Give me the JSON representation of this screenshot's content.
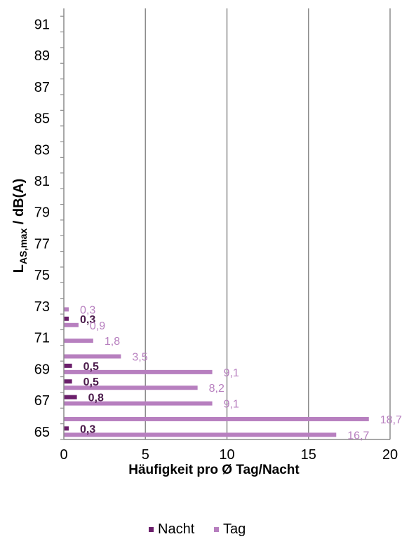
{
  "chart_data": {
    "type": "bar",
    "orientation": "horizontal",
    "xlabel": "Häufigkeit pro Ø Tag/Nacht",
    "ylabel_main": "L",
    "ylabel_sub": "AS,max",
    "ylabel_rest": " / dB(A)",
    "xlim": [
      0,
      20
    ],
    "xticks": [
      0,
      5,
      10,
      15,
      20
    ],
    "ylim": [
      64.5,
      92
    ],
    "yticks": [
      65,
      67,
      69,
      71,
      73,
      75,
      77,
      79,
      81,
      83,
      85,
      87,
      89,
      91
    ],
    "grid_x": true,
    "legend_position": "bottom",
    "colors": {
      "Nacht": "#6b1f6b",
      "Tag": "#b77fbf"
    },
    "series": [
      {
        "name": "Nacht",
        "label_style": "nacht",
        "points": [
          {
            "y": 65,
            "value": 0.3,
            "label": "0,3"
          },
          {
            "y": 67,
            "value": 0.8,
            "label": "0,8"
          },
          {
            "y": 68,
            "value": 0.5,
            "label": "0,5"
          },
          {
            "y": 69,
            "value": 0.5,
            "label": "0,5"
          },
          {
            "y": 72,
            "value": 0.3,
            "label": "0,3"
          }
        ]
      },
      {
        "name": "Tag",
        "label_style": "tag",
        "points": [
          {
            "y": 65,
            "value": 16.7,
            "label": "16,7"
          },
          {
            "y": 66,
            "value": 18.7,
            "label": "18,7"
          },
          {
            "y": 67,
            "value": 9.1,
            "label": "9,1"
          },
          {
            "y": 68,
            "value": 8.2,
            "label": "8,2"
          },
          {
            "y": 69,
            "value": 9.1,
            "label": "9,1"
          },
          {
            "y": 70,
            "value": 3.5,
            "label": "3,5"
          },
          {
            "y": 71,
            "value": 1.8,
            "label": "1,8"
          },
          {
            "y": 72,
            "value": 0.9,
            "label": "0,9"
          },
          {
            "y": 73,
            "value": 0.3,
            "label": "0,3"
          }
        ]
      }
    ]
  }
}
